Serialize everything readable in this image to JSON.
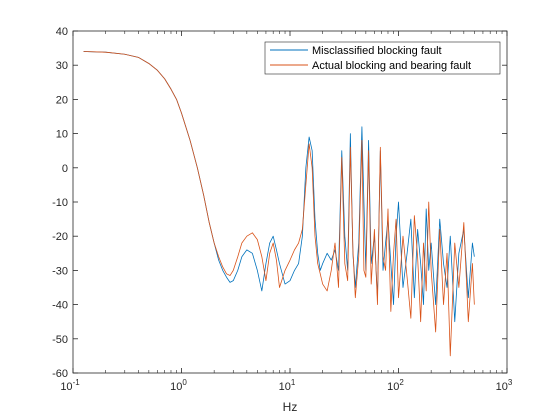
{
  "chart_data": {
    "type": "line",
    "title": "",
    "xlabel": "Hz",
    "ylabel": "",
    "xscale": "log",
    "xlim": [
      0.1,
      1000
    ],
    "ylim": [
      -60,
      40
    ],
    "grid": false,
    "legend_position": "top-right",
    "x_ticks": [
      {
        "value": 0.1,
        "base": "10",
        "exp": "-1"
      },
      {
        "value": 1,
        "base": "10",
        "exp": "0"
      },
      {
        "value": 10,
        "base": "10",
        "exp": "1"
      },
      {
        "value": 100,
        "base": "10",
        "exp": "2"
      },
      {
        "value": 1000,
        "base": "10",
        "exp": "3"
      }
    ],
    "y_ticks": [
      {
        "value": 40,
        "label": "40"
      },
      {
        "value": 30,
        "label": "30"
      },
      {
        "value": 20,
        "label": "20"
      },
      {
        "value": 10,
        "label": "10"
      },
      {
        "value": 0,
        "label": "0"
      },
      {
        "value": -10,
        "label": "-10"
      },
      {
        "value": -20,
        "label": "-20"
      },
      {
        "value": -30,
        "label": "-30"
      },
      {
        "value": -40,
        "label": "-40"
      },
      {
        "value": -50,
        "label": "-50"
      },
      {
        "value": -60,
        "label": "-60"
      }
    ],
    "series": [
      {
        "name": "Misclassified blocking fault",
        "color": "#0072BD",
        "x": [
          0.125,
          0.2,
          0.3,
          0.4,
          0.5,
          0.6,
          0.7,
          0.8,
          0.9,
          1.0,
          1.2,
          1.4,
          1.6,
          1.8,
          2.0,
          2.2,
          2.4,
          2.6,
          2.8,
          3.0,
          3.3,
          3.6,
          4.0,
          4.5,
          5.0,
          5.5,
          6.0,
          6.5,
          7.0,
          7.5,
          8.0,
          9.0,
          10,
          11,
          12,
          13,
          14,
          15,
          16,
          17,
          18,
          19,
          20,
          22,
          24,
          26,
          28,
          30,
          32,
          34,
          36,
          38,
          40,
          43,
          46,
          48,
          50,
          53,
          56,
          60,
          64,
          68,
          72,
          76,
          80,
          85,
          90,
          95,
          100,
          110,
          120,
          130,
          140,
          150,
          160,
          170,
          180,
          190,
          200,
          220,
          240,
          260,
          280,
          300,
          330,
          360,
          400,
          440,
          480,
          500
        ],
        "y": [
          34,
          33.8,
          33.2,
          32.3,
          30.5,
          28.5,
          26,
          23,
          20,
          16,
          8,
          0,
          -8,
          -16,
          -22,
          -27,
          -30,
          -32,
          -33.5,
          -33,
          -30,
          -26,
          -24,
          -25,
          -30,
          -36,
          -28,
          -22,
          -20,
          -24,
          -28,
          -34,
          -33,
          -30,
          -28,
          -20,
          0,
          9,
          5,
          -15,
          -25,
          -30,
          -28,
          -25,
          -27,
          -24,
          -30,
          5,
          -20,
          -30,
          10,
          -25,
          -35,
          -22,
          12,
          -10,
          -30,
          8,
          -28,
          -20,
          -38,
          5,
          -30,
          -22,
          -15,
          -28,
          -40,
          -20,
          -10,
          -35,
          -25,
          -15,
          -38,
          -18,
          -28,
          -40,
          -12,
          -30,
          -22,
          -40,
          -15,
          -28,
          -35,
          -20,
          -45,
          -25,
          -18,
          -38,
          -22,
          -26
        ],
        "density_amplitude": 0
      },
      {
        "name": "Actual blocking and bearing fault",
        "color": "#D95319",
        "x": [
          0.125,
          0.2,
          0.3,
          0.4,
          0.5,
          0.6,
          0.7,
          0.8,
          0.9,
          1.0,
          1.2,
          1.4,
          1.6,
          1.8,
          2.0,
          2.2,
          2.4,
          2.6,
          2.8,
          3.0,
          3.3,
          3.6,
          4.0,
          4.5,
          5.0,
          5.5,
          6.0,
          6.5,
          7.0,
          7.5,
          8.0,
          9.0,
          10,
          11,
          12,
          13,
          14,
          15,
          16,
          17,
          18,
          19,
          20,
          22,
          24,
          26,
          28,
          30,
          32,
          34,
          36,
          38,
          40,
          43,
          46,
          48,
          50,
          53,
          56,
          60,
          64,
          68,
          72,
          76,
          80,
          85,
          90,
          95,
          100,
          110,
          120,
          130,
          140,
          150,
          160,
          170,
          180,
          190,
          200,
          220,
          240,
          260,
          280,
          300,
          330,
          360,
          400,
          440,
          480,
          500
        ],
        "y": [
          34,
          33.8,
          33.2,
          32.3,
          30.5,
          28.5,
          26,
          23,
          20,
          16,
          8,
          0,
          -8,
          -16,
          -22,
          -26,
          -29,
          -31,
          -31.5,
          -30,
          -26,
          -22,
          -20,
          -19,
          -21,
          -26,
          -33,
          -25,
          -22,
          -27,
          -35,
          -30,
          -27,
          -24,
          -22,
          -18,
          -5,
          7,
          0,
          -20,
          -28,
          -31,
          -34,
          -36,
          -30,
          -22,
          -35,
          3,
          -28,
          -33,
          6,
          -24,
          -38,
          -26,
          8,
          -30,
          -32,
          5,
          -34,
          -18,
          -40,
          6,
          -26,
          -30,
          -12,
          -42,
          -25,
          -15,
          -38,
          -20,
          -32,
          -44,
          -14,
          -26,
          -45,
          -22,
          -36,
          -10,
          -30,
          -48,
          -18,
          -40,
          -25,
          -55,
          -22,
          -35,
          -16,
          -45,
          -28,
          -40
        ],
        "density_amplitude": 0
      }
    ]
  }
}
